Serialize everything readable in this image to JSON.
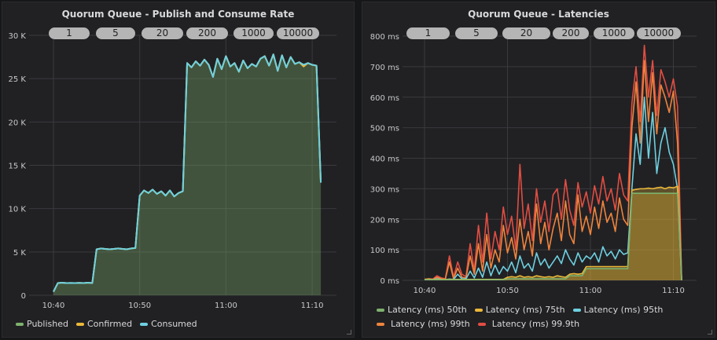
{
  "colors": {
    "published": "#7eb26d",
    "confirmed": "#eab839",
    "consumed": "#6ed0e0",
    "p50": "#7eb26d",
    "p75": "#eab839",
    "p95": "#6ed0e0",
    "p99": "#ef843c",
    "p999": "#e24d42"
  },
  "panels": [
    {
      "title": "Quorum Queue - Publish and Consume Rate",
      "buttons": [
        "1",
        "5",
        "20",
        "200",
        "1000",
        "10000"
      ],
      "legend": [
        "Published",
        "Confirmed",
        "Consumed"
      ]
    },
    {
      "title": "Quorum Queue - Latencies",
      "buttons": [
        "1",
        "5",
        "20",
        "200",
        "1000",
        "10000"
      ],
      "legend": [
        "Latency (ms) 50th",
        "Latency (ms) 75th",
        "Latency (ms) 95th",
        "Latency (ms) 99th",
        "Latency (ms) 99.9th"
      ]
    }
  ],
  "chart_data": [
    {
      "type": "area",
      "title": "Quorum Queue - Publish and Consume Rate",
      "x_start": "10:40:00",
      "x_interval_seconds": 30,
      "x_ticks": [
        "10:40",
        "10:50",
        "11:00",
        "11:10"
      ],
      "y_ticks": [
        "0",
        "5 K",
        "10 K",
        "15 K",
        "20 K",
        "25 K",
        "30 K"
      ],
      "ylim": [
        0,
        30000
      ],
      "grid": true,
      "legend": "bottom",
      "series": [
        {
          "name": "Published",
          "values": [
            400,
            1400,
            1450,
            1400,
            1420,
            1400,
            1430,
            1400,
            1450,
            1400,
            5300,
            5400,
            5350,
            5300,
            5350,
            5400,
            5350,
            5300,
            5400,
            5450,
            11500,
            12100,
            11800,
            12200,
            11700,
            12000,
            11500,
            12100,
            11400,
            11800,
            12000,
            26800,
            26300,
            27000,
            26500,
            27200,
            26600,
            25200,
            27300,
            26100,
            27600,
            26400,
            26800,
            25800,
            27100,
            26200,
            26700,
            26400,
            27300,
            27600,
            26500,
            27800,
            25900,
            27700,
            26300,
            27500,
            26700,
            26900,
            26600,
            26800,
            26600,
            26500,
            13000
          ]
        },
        {
          "name": "Confirmed",
          "values": [
            400,
            1400,
            1450,
            1400,
            1420,
            1400,
            1430,
            1400,
            1450,
            1400,
            5300,
            5400,
            5350,
            5300,
            5350,
            5400,
            5350,
            5300,
            5400,
            5450,
            11500,
            12100,
            11800,
            12200,
            11700,
            12000,
            11500,
            12100,
            11400,
            11800,
            12000,
            26800,
            26300,
            27000,
            26500,
            27200,
            26600,
            25200,
            27300,
            26100,
            27600,
            26400,
            26800,
            25800,
            27100,
            26200,
            26700,
            26400,
            27300,
            27600,
            26500,
            27800,
            25900,
            27700,
            26300,
            27500,
            26700,
            26900,
            26400,
            26800,
            26600,
            26500,
            13000
          ]
        },
        {
          "name": "Consumed",
          "values": [
            400,
            1400,
            1450,
            1400,
            1420,
            1400,
            1430,
            1400,
            1450,
            1400,
            5300,
            5400,
            5350,
            5300,
            5350,
            5400,
            5350,
            5300,
            5400,
            5450,
            11500,
            12100,
            11800,
            12200,
            11700,
            12000,
            11500,
            12100,
            11400,
            11800,
            12000,
            26800,
            26300,
            27000,
            26500,
            27200,
            26600,
            25200,
            27300,
            26100,
            27600,
            26400,
            26800,
            25800,
            27100,
            26200,
            26700,
            26400,
            27300,
            27600,
            26500,
            27800,
            25900,
            27700,
            26300,
            27500,
            26700,
            26900,
            26600,
            26800,
            26600,
            26500,
            13000
          ]
        }
      ]
    },
    {
      "type": "line",
      "title": "Quorum Queue - Latencies",
      "x_start": "10:40:00",
      "x_interval_seconds": 30,
      "x_ticks": [
        "10:40",
        "10:50",
        "11:00",
        "11:10"
      ],
      "y_ticks": [
        "0 ms",
        "100 ms",
        "200 ms",
        "300 ms",
        "400 ms",
        "500 ms",
        "600 ms",
        "700 ms",
        "800 ms"
      ],
      "ylim": [
        0,
        800
      ],
      "grid": true,
      "legend": "bottom",
      "series": [
        {
          "name": "Latency (ms) 50th",
          "values": [
            2,
            2,
            2,
            2,
            2,
            2,
            2,
            2,
            2,
            2,
            2,
            2,
            2,
            2,
            2,
            2,
            2,
            2,
            2,
            2,
            5,
            5,
            5,
            5,
            5,
            5,
            5,
            5,
            5,
            5,
            5,
            5,
            5,
            5,
            5,
            15,
            15,
            15,
            15,
            38,
            38,
            38,
            38,
            38,
            38,
            38,
            38,
            38,
            38,
            38,
            285,
            285,
            285,
            285,
            285,
            285,
            285,
            285,
            285,
            285,
            285,
            285,
            0
          ]
        },
        {
          "name": "Latency (ms) 75th",
          "values": [
            3,
            3,
            3,
            3,
            3,
            3,
            3,
            3,
            3,
            3,
            3,
            3,
            3,
            3,
            3,
            3,
            3,
            3,
            3,
            3,
            10,
            12,
            10,
            15,
            10,
            12,
            10,
            15,
            12,
            10,
            12,
            10,
            15,
            12,
            10,
            20,
            22,
            20,
            22,
            45,
            45,
            45,
            45,
            45,
            45,
            45,
            45,
            45,
            45,
            45,
            295,
            298,
            300,
            300,
            302,
            300,
            303,
            305,
            300,
            305,
            303,
            308,
            0
          ]
        },
        {
          "name": "Latency (ms) 95th",
          "values": [
            2,
            3,
            2,
            5,
            3,
            2,
            4,
            3,
            20,
            5,
            5,
            30,
            8,
            40,
            10,
            60,
            15,
            50,
            20,
            45,
            30,
            60,
            25,
            80,
            40,
            55,
            30,
            90,
            50,
            70,
            40,
            60,
            80,
            55,
            100,
            70,
            50,
            90,
            60,
            80,
            70,
            90,
            60,
            110,
            80,
            95,
            70,
            100,
            85,
            90,
            300,
            480,
            380,
            600,
            400,
            550,
            350,
            450,
            500,
            420,
            380,
            300,
            0
          ]
        },
        {
          "name": "Latency (ms) 99th",
          "values": [
            3,
            5,
            3,
            10,
            5,
            3,
            60,
            5,
            40,
            10,
            8,
            80,
            20,
            120,
            30,
            150,
            40,
            100,
            60,
            180,
            90,
            140,
            70,
            200,
            100,
            160,
            80,
            250,
            120,
            190,
            100,
            170,
            220,
            130,
            260,
            150,
            120,
            280,
            160,
            210,
            150,
            240,
            170,
            260,
            190,
            220,
            160,
            270,
            200,
            180,
            500,
            650,
            450,
            720,
            520,
            680,
            480,
            640,
            600,
            550,
            620,
            450,
            0
          ]
        },
        {
          "name": "Latency (ms) 99.9th",
          "values": [
            3,
            5,
            4,
            15,
            8,
            5,
            80,
            10,
            60,
            20,
            12,
            120,
            30,
            180,
            60,
            220,
            70,
            160,
            100,
            240,
            150,
            210,
            100,
            380,
            170,
            250,
            130,
            300,
            190,
            260,
            160,
            280,
            300,
            200,
            330,
            230,
            180,
            320,
            240,
            290,
            220,
            310,
            250,
            340,
            260,
            300,
            230,
            350,
            280,
            260,
            580,
            700,
            520,
            770,
            600,
            720,
            540,
            690,
            650,
            600,
            660,
            570,
            0
          ]
        }
      ]
    }
  ]
}
